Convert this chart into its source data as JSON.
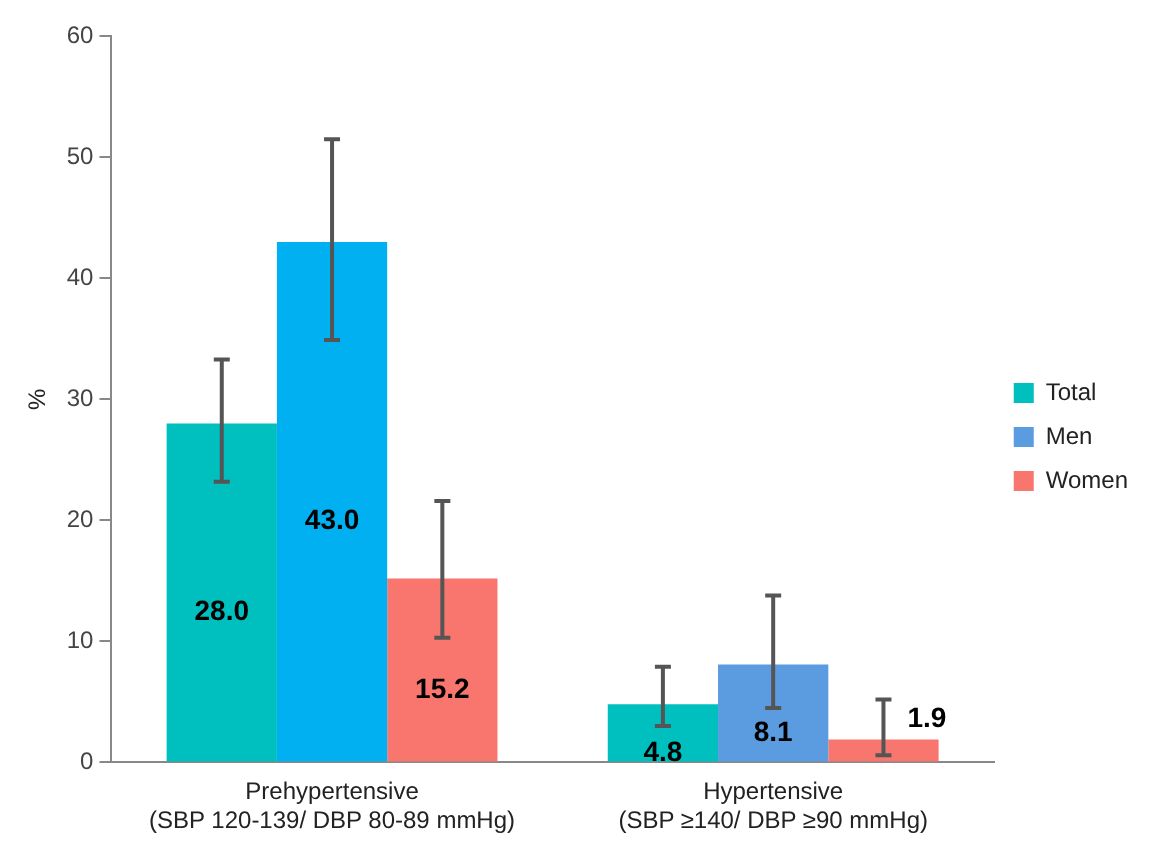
{
  "chart_data": {
    "type": "bar",
    "ylabel": "%",
    "categories": [
      "Prehypertensive\n(SBP 120-139/ DBP 80-89 mmHg)",
      "Hypertensive\n(SBP ≥140/ DBP ≥90 mmHg)"
    ],
    "series": [
      {
        "name": "Total",
        "color": "#00bfbf",
        "values": [
          28.0,
          4.8
        ],
        "value_labels": [
          "28.0",
          "4.8"
        ],
        "errors": [
          [
            23.2,
            33.3
          ],
          [
            3.0,
            7.9
          ]
        ]
      },
      {
        "name": "Men",
        "color": "#5b9be0",
        "colors": [
          "#00b0f0",
          "#5b9be0"
        ],
        "values": [
          43.0,
          8.1
        ],
        "value_labels": [
          "43.0",
          "8.1"
        ],
        "errors": [
          [
            34.9,
            51.5
          ],
          [
            4.5,
            13.8
          ]
        ]
      },
      {
        "name": "Women",
        "color": "#f8766d",
        "values": [
          15.2,
          1.9
        ],
        "value_labels": [
          "15.2",
          "1.9"
        ],
        "errors": [
          [
            10.3,
            21.6
          ],
          [
            0.6,
            5.2
          ]
        ]
      }
    ],
    "ylim": [
      0,
      60
    ],
    "yticks": [
      0,
      10,
      20,
      30,
      40,
      50,
      60
    ],
    "grid": false,
    "legend": "right"
  }
}
